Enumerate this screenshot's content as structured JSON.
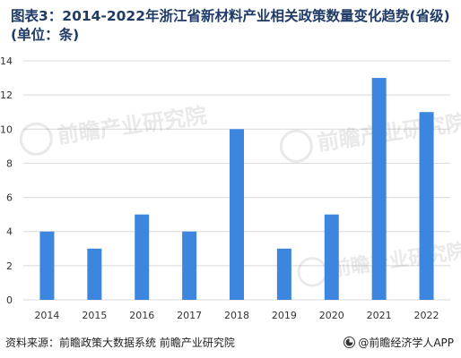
{
  "header": {
    "title": "图表3：2014-2022年浙江省新材料产业相关政策数量变化趋势(省级)(单位：条)"
  },
  "footer": {
    "source": "资料来源：前瞻政策大数据系统 前瞻产业研究院",
    "brand": "@前瞻经济学人APP"
  },
  "watermark": {
    "text": "前瞻产业研究院"
  },
  "colors": {
    "bar": "#3d86e0",
    "grid": "#d9d9d9",
    "axis_text": "#333333",
    "title": "#1f3b66"
  },
  "chart_data": {
    "type": "bar",
    "categories": [
      "2014",
      "2015",
      "2016",
      "2017",
      "2018",
      "2019",
      "2020",
      "2021",
      "2022"
    ],
    "values": [
      4,
      3,
      5,
      4,
      10,
      3,
      5,
      13,
      11
    ],
    "yticks": [
      "0",
      "2",
      "4",
      "6",
      "8",
      "10",
      "12",
      "14"
    ],
    "ylim": [
      0,
      14
    ],
    "grid": true,
    "legend": "none"
  }
}
